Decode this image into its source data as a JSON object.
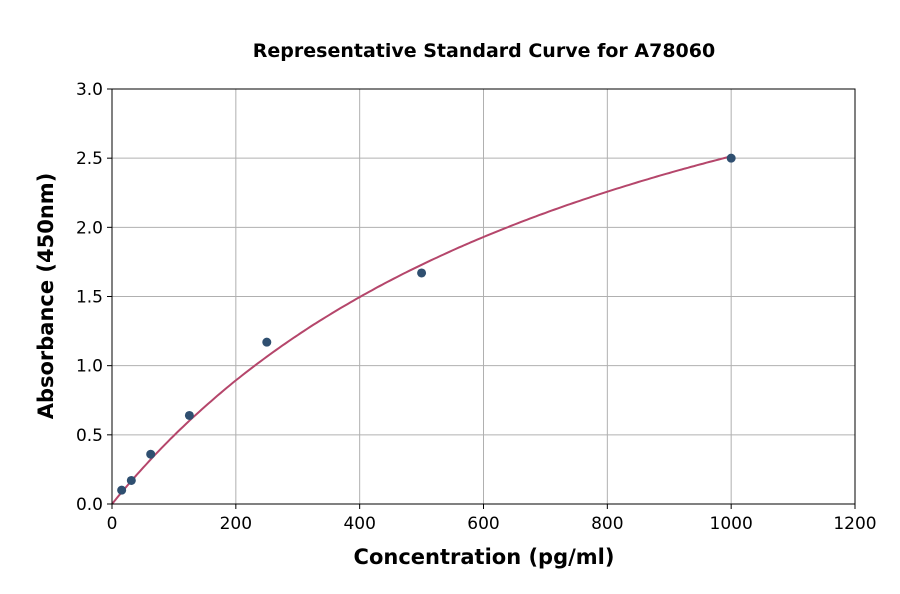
{
  "chart_data": {
    "type": "scatter",
    "title": "Representative Standard Curve for A78060",
    "xlabel": "Concentration (pg/ml)",
    "ylabel": "Absorbance (450nm)",
    "xlim": [
      0,
      1200
    ],
    "ylim": [
      0,
      3.0
    ],
    "xticks": [
      "0",
      "200",
      "400",
      "600",
      "800",
      "1000",
      "1200"
    ],
    "yticks": [
      "0.0",
      "0.5",
      "1.0",
      "1.5",
      "2.0",
      "2.5",
      "3.0"
    ],
    "grid": true,
    "series": [
      {
        "x": [
          15.6,
          31.25,
          62.5,
          125,
          250,
          500,
          1000
        ],
        "y": [
          0.1,
          0.17,
          0.36,
          0.64,
          1.17,
          1.67,
          2.5
        ],
        "marker_color": "#2f4f70",
        "fit_line_color": "#b5466b"
      }
    ]
  }
}
